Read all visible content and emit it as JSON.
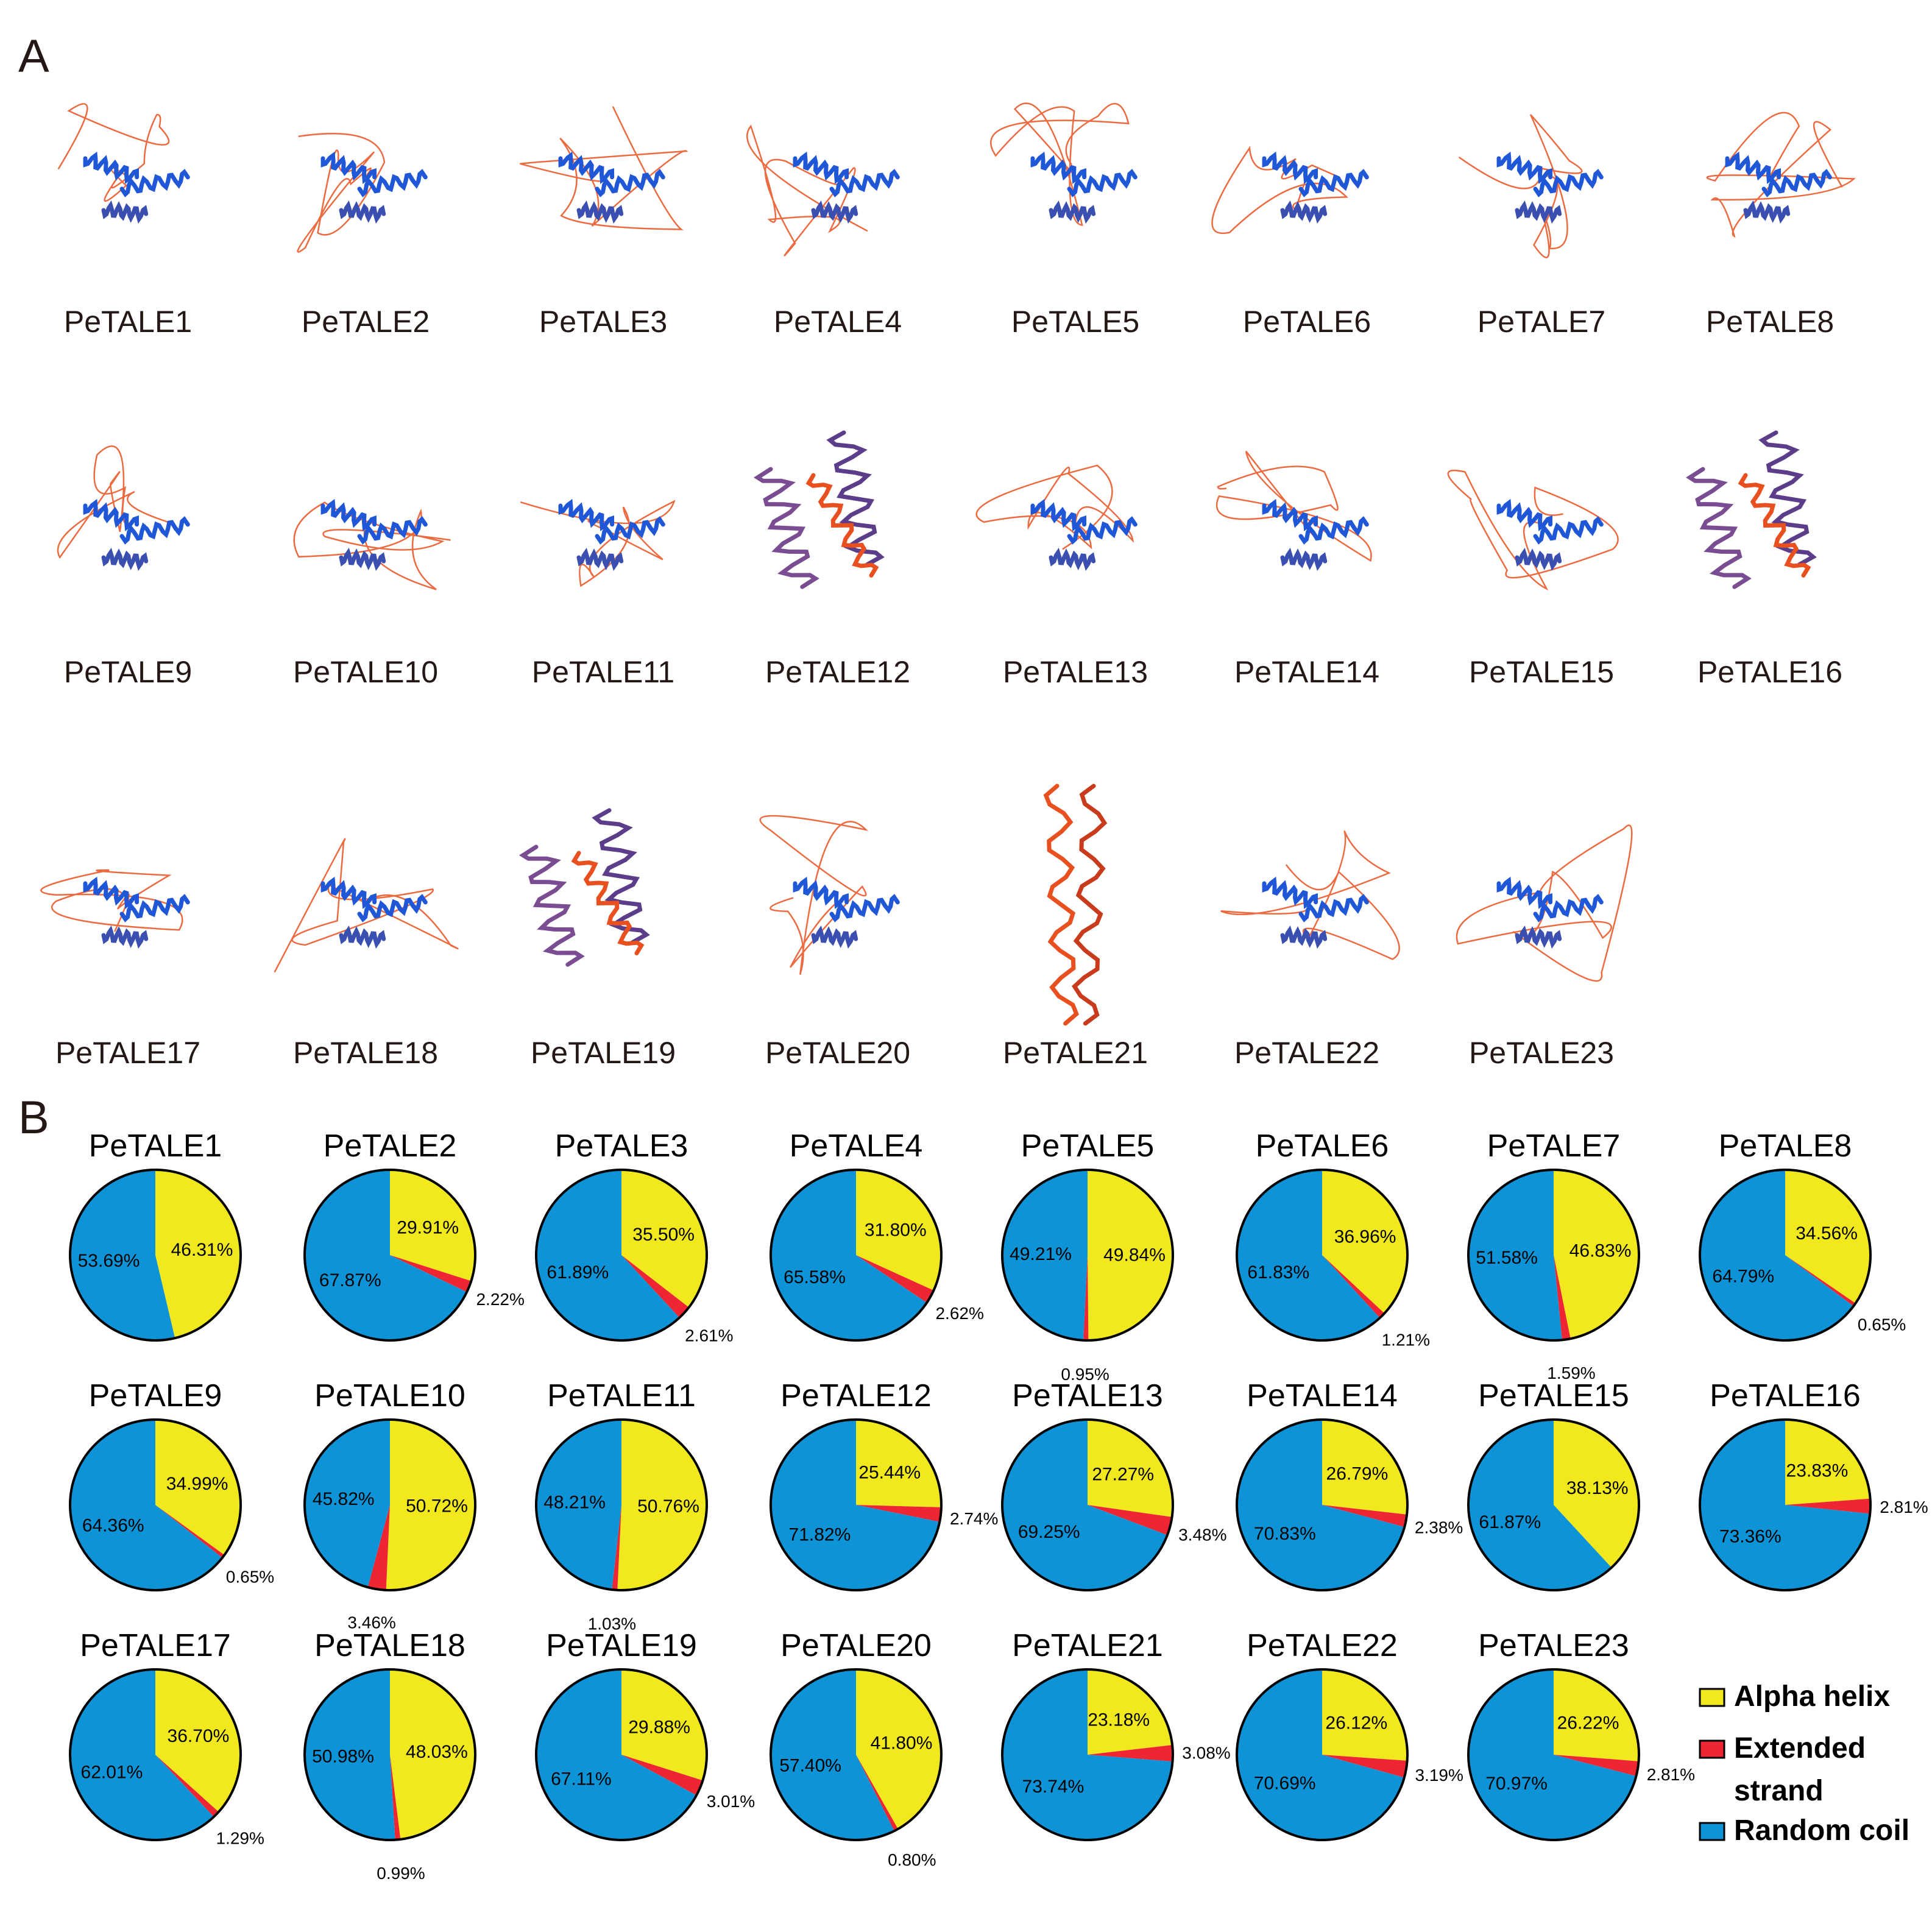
{
  "panel_a": {
    "label": "A",
    "structures": [
      {
        "name": "PeTALE1",
        "style": "loose"
      },
      {
        "name": "PeTALE2",
        "style": "loose"
      },
      {
        "name": "PeTALE3",
        "style": "loose"
      },
      {
        "name": "PeTALE4",
        "style": "loose"
      },
      {
        "name": "PeTALE5",
        "style": "loose"
      },
      {
        "name": "PeTALE6",
        "style": "loose"
      },
      {
        "name": "PeTALE7",
        "style": "loose"
      },
      {
        "name": "PeTALE8",
        "style": "loose"
      },
      {
        "name": "PeTALE9",
        "style": "loose"
      },
      {
        "name": "PeTALE10",
        "style": "loose"
      },
      {
        "name": "PeTALE11",
        "style": "loose"
      },
      {
        "name": "PeTALE12",
        "style": "compact"
      },
      {
        "name": "PeTALE13",
        "style": "loose"
      },
      {
        "name": "PeTALE14",
        "style": "loose"
      },
      {
        "name": "PeTALE15",
        "style": "loose"
      },
      {
        "name": "PeTALE16",
        "style": "compact"
      },
      {
        "name": "PeTALE17",
        "style": "loose"
      },
      {
        "name": "PeTALE18",
        "style": "loose"
      },
      {
        "name": "PeTALE19",
        "style": "compact"
      },
      {
        "name": "PeTALE20",
        "style": "loose"
      },
      {
        "name": "PeTALE21",
        "style": "coiled"
      },
      {
        "name": "PeTALE22",
        "style": "loose"
      },
      {
        "name": "PeTALE23",
        "style": "loose"
      }
    ],
    "colors": {
      "helix_blue": "#1f57d6",
      "coil_orange": "#e8501f",
      "compact_purple": "#7a4d92"
    }
  },
  "panel_b": {
    "label": "B",
    "legend": [
      {
        "label": "Alpha helix",
        "color": "#f2e81e"
      },
      {
        "label": "Extended strand",
        "color": "#ee2533"
      },
      {
        "label": "Random coil",
        "color": "#0e93d6"
      }
    ]
  },
  "chart_data": {
    "type": "pie",
    "categories": [
      "Alpha helix",
      "Extended strand",
      "Random coil"
    ],
    "colors": {
      "Alpha helix": "#f2e81e",
      "Extended strand": "#ee2533",
      "Random coil": "#0e93d6"
    },
    "series": [
      {
        "name": "PeTALE1",
        "values": [
          46.31,
          0,
          53.69
        ],
        "labels": [
          "46.31%",
          "",
          "53.69%"
        ]
      },
      {
        "name": "PeTALE2",
        "values": [
          29.91,
          2.22,
          67.87
        ],
        "labels": [
          "29.91%",
          "2.22%",
          "67.87%"
        ]
      },
      {
        "name": "PeTALE3",
        "values": [
          35.5,
          2.61,
          61.89
        ],
        "labels": [
          "35.50%",
          "2.61%",
          "61.89%"
        ]
      },
      {
        "name": "PeTALE4",
        "values": [
          31.8,
          2.62,
          65.58
        ],
        "labels": [
          "31.80%",
          "2.62%",
          "65.58%"
        ]
      },
      {
        "name": "PeTALE5",
        "values": [
          49.84,
          0.95,
          49.21
        ],
        "labels": [
          "49.84%",
          "0.95%",
          "49.21%"
        ]
      },
      {
        "name": "PeTALE6",
        "values": [
          36.96,
          1.21,
          61.83
        ],
        "labels": [
          "36.96%",
          "1.21%",
          "61.83%"
        ]
      },
      {
        "name": "PeTALE7",
        "values": [
          46.83,
          1.59,
          51.58
        ],
        "labels": [
          "46.83%",
          "1.59%",
          "51.58%"
        ]
      },
      {
        "name": "PeTALE8",
        "values": [
          34.56,
          0.65,
          64.79
        ],
        "labels": [
          "34.56%",
          "0.65%",
          "64.79%"
        ]
      },
      {
        "name": "PeTALE9",
        "values": [
          34.99,
          0.65,
          64.36
        ],
        "labels": [
          "34.99%",
          "0.65%",
          "64.36%"
        ]
      },
      {
        "name": "PeTALE10",
        "values": [
          50.72,
          3.46,
          45.82
        ],
        "labels": [
          "50.72%",
          "3.46%",
          "45.82%"
        ]
      },
      {
        "name": "PeTALE11",
        "values": [
          50.76,
          1.03,
          48.21
        ],
        "labels": [
          "50.76%",
          "1.03%",
          "48.21%"
        ]
      },
      {
        "name": "PeTALE12",
        "values": [
          25.44,
          2.74,
          71.82
        ],
        "labels": [
          "25.44%",
          "2.74%",
          "71.82%"
        ]
      },
      {
        "name": "PeTALE13",
        "values": [
          27.27,
          3.48,
          69.25
        ],
        "labels": [
          "27.27%",
          "3.48%",
          "69.25%"
        ]
      },
      {
        "name": "PeTALE14",
        "values": [
          26.79,
          2.38,
          70.83
        ],
        "labels": [
          "26.79%",
          "2.38%",
          "70.83%"
        ]
      },
      {
        "name": "PeTALE15",
        "values": [
          38.13,
          0,
          61.87
        ],
        "labels": [
          "38.13%",
          "",
          "61.87%"
        ]
      },
      {
        "name": "PeTALE16",
        "values": [
          23.83,
          2.81,
          73.36
        ],
        "labels": [
          "23.83%",
          "2.81%",
          "73.36%"
        ]
      },
      {
        "name": "PeTALE17",
        "values": [
          36.7,
          1.29,
          62.01
        ],
        "labels": [
          "36.70%",
          "1.29%",
          "62.01%"
        ]
      },
      {
        "name": "PeTALE18",
        "values": [
          48.03,
          0.99,
          50.98
        ],
        "labels": [
          "48.03%",
          "0.99%",
          "50.98%"
        ]
      },
      {
        "name": "PeTALE19",
        "values": [
          29.88,
          3.01,
          67.11
        ],
        "labels": [
          "29.88%",
          "3.01%",
          "67.11%"
        ]
      },
      {
        "name": "PeTALE20",
        "values": [
          41.8,
          0.8,
          57.4
        ],
        "labels": [
          "41.80%",
          "0.80%",
          "57.40%"
        ]
      },
      {
        "name": "PeTALE21",
        "values": [
          23.18,
          3.08,
          73.74
        ],
        "labels": [
          "23.18%",
          "3.08%",
          "73.74%"
        ]
      },
      {
        "name": "PeTALE22",
        "values": [
          26.12,
          3.19,
          70.69
        ],
        "labels": [
          "26.12%",
          "3.19%",
          "70.69%"
        ]
      },
      {
        "name": "PeTALE23",
        "values": [
          26.22,
          2.81,
          70.97
        ],
        "labels": [
          "26.22%",
          "2.81%",
          "70.97%"
        ]
      }
    ]
  }
}
